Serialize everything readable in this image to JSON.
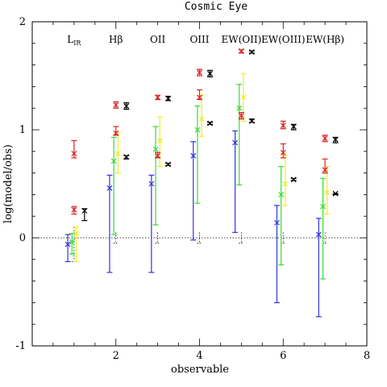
{
  "chart_data": {
    "type": "scatter",
    "title": "Cosmic Eye",
    "xlabel": "observable",
    "ylabel": "log(model/obs)",
    "xlim": [
      0,
      8
    ],
    "ylim": [
      -1,
      2
    ],
    "x_ticks": [
      2,
      4,
      6,
      8
    ],
    "y_ticks": [
      -1,
      0,
      1,
      2
    ],
    "reference_line": {
      "y": 0,
      "style": "dotted"
    },
    "grid": false,
    "observable_labels": [
      {
        "x": 1,
        "text": "L",
        "sub": "IR"
      },
      {
        "x": 2,
        "text": "Hβ"
      },
      {
        "x": 3,
        "text": "OII"
      },
      {
        "x": 4,
        "text": "OIII"
      },
      {
        "x": 5,
        "text": "EW(OII)"
      },
      {
        "x": 6,
        "text": "EW(OIII)"
      },
      {
        "x": 7,
        "text": "EW(Hβ)"
      }
    ],
    "series": [
      {
        "color": "#3333dd",
        "offset": -0.15,
        "points": [
          {
            "x": 1,
            "y": -0.06,
            "lo": -0.22,
            "hi": 0.03
          },
          {
            "x": 2,
            "y": 0.46,
            "lo": -0.32,
            "hi": 0.58
          },
          {
            "x": 3,
            "y": 0.5,
            "lo": -0.32,
            "hi": 0.58
          },
          {
            "x": 4,
            "y": 0.76,
            "lo": -0.02,
            "hi": 0.89
          },
          {
            "x": 5,
            "y": 0.88,
            "lo": 0.05,
            "hi": 0.99
          },
          {
            "x": 6,
            "y": 0.14,
            "lo": -0.6,
            "hi": 0.3
          },
          {
            "x": 7,
            "y": 0.03,
            "lo": -0.73,
            "hi": 0.18
          }
        ]
      },
      {
        "color": "#33dd33",
        "offset": -0.05,
        "points": [
          {
            "x": 1,
            "y": -0.04,
            "lo": -0.15,
            "hi": 0.04
          },
          {
            "x": 2,
            "y": 0.71,
            "lo": 0.03,
            "hi": 0.93
          },
          {
            "x": 3,
            "y": 0.82,
            "lo": 0.12,
            "hi": 1.03
          },
          {
            "x": 4,
            "y": 1.0,
            "lo": 0.32,
            "hi": 1.22
          },
          {
            "x": 5,
            "y": 1.2,
            "lo": 0.49,
            "hi": 1.42
          },
          {
            "x": 6,
            "y": 0.4,
            "lo": -0.25,
            "hi": 0.66
          },
          {
            "x": 7,
            "y": 0.29,
            "lo": -0.38,
            "hi": 0.55
          }
        ]
      },
      {
        "color": "#eeee22",
        "offset": 0.05,
        "points": [
          {
            "x": 1,
            "y": 0.04,
            "lo": -0.22,
            "hi": 0.1
          },
          {
            "x": 2,
            "y": 0.78,
            "lo": 0.6,
            "hi": 0.98
          },
          {
            "x": 3,
            "y": 0.9,
            "lo": 0.66,
            "hi": 1.12
          },
          {
            "x": 4,
            "y": 1.1,
            "lo": 0.94,
            "hi": 1.32
          },
          {
            "x": 5,
            "y": 1.3,
            "lo": 1.08,
            "hi": 1.52
          },
          {
            "x": 6,
            "y": 0.5,
            "lo": 0.3,
            "hi": 0.76
          },
          {
            "x": 7,
            "y": 0.42,
            "lo": 0.22,
            "hi": 0.66
          }
        ]
      },
      {
        "color": "#dd2222",
        "offset": 0.0,
        "points": [
          {
            "x": 1,
            "y": 0.78,
            "lo": 0.74,
            "hi": 0.9
          },
          {
            "x": 1,
            "y": 0.26,
            "lo": 0.22,
            "hi": 0.29
          },
          {
            "x": 2,
            "y": 1.23,
            "lo": 1.2,
            "hi": 1.26
          },
          {
            "x": 2,
            "y": 0.97,
            "lo": 0.95,
            "hi": 1.03
          },
          {
            "x": 3,
            "y": 1.3,
            "lo": 1.28,
            "hi": 1.32
          },
          {
            "x": 3,
            "y": 0.76,
            "lo": 0.74,
            "hi": 0.79
          },
          {
            "x": 4,
            "y": 1.53,
            "lo": 1.5,
            "hi": 1.56
          },
          {
            "x": 4,
            "y": 1.3,
            "lo": 1.28,
            "hi": 1.37
          },
          {
            "x": 5,
            "y": 1.73,
            "lo": 1.71,
            "hi": 1.74
          },
          {
            "x": 5,
            "y": 1.13,
            "lo": 1.1,
            "hi": 1.16
          },
          {
            "x": 6,
            "y": 1.04,
            "lo": 1.01,
            "hi": 1.08
          },
          {
            "x": 6,
            "y": 0.79,
            "lo": 0.74,
            "hi": 0.87
          },
          {
            "x": 7,
            "y": 0.92,
            "lo": 0.89,
            "hi": 0.95
          },
          {
            "x": 7,
            "y": 0.63,
            "lo": 0.6,
            "hi": 0.73
          }
        ]
      },
      {
        "color": "#000000",
        "offset": 0.25,
        "points": [
          {
            "x": 1,
            "y": 0.25,
            "lo": 0.16,
            "hi": 0.27
          },
          {
            "x": 2,
            "y": 1.22,
            "lo": 1.19,
            "hi": 1.25
          },
          {
            "x": 2,
            "y": 0.75,
            "lo": 0.73,
            "hi": 0.76
          },
          {
            "x": 3,
            "y": 1.29,
            "lo": 1.27,
            "hi": 1.31
          },
          {
            "x": 3,
            "y": 0.68,
            "lo": 0.67,
            "hi": 0.69
          },
          {
            "x": 4,
            "y": 1.52,
            "lo": 1.49,
            "hi": 1.55
          },
          {
            "x": 4,
            "y": 1.06,
            "lo": 1.05,
            "hi": 1.07
          },
          {
            "x": 5,
            "y": 1.72,
            "lo": 1.71,
            "hi": 1.73
          },
          {
            "x": 5,
            "y": 1.08,
            "lo": 1.07,
            "hi": 1.1
          },
          {
            "x": 6,
            "y": 1.03,
            "lo": 1.0,
            "hi": 1.05
          },
          {
            "x": 6,
            "y": 0.54,
            "lo": 0.53,
            "hi": 0.55
          },
          {
            "x": 7,
            "y": 0.91,
            "lo": 0.88,
            "hi": 0.93
          },
          {
            "x": 7,
            "y": 0.41,
            "lo": 0.4,
            "hi": 0.41
          }
        ]
      }
    ],
    "dotted_ghost_bars": [
      {
        "x": 1,
        "lo": -0.22,
        "hi": 0.1
      },
      {
        "x": 2,
        "lo": -0.05,
        "hi": 0.05
      },
      {
        "x": 3,
        "lo": -0.05,
        "hi": 0.05
      },
      {
        "x": 4,
        "lo": -0.05,
        "hi": 0.05
      },
      {
        "x": 5,
        "lo": -0.05,
        "hi": 0.05
      },
      {
        "x": 6,
        "lo": -0.05,
        "hi": 0.05
      },
      {
        "x": 7,
        "lo": -0.05,
        "hi": 0.05
      }
    ]
  }
}
